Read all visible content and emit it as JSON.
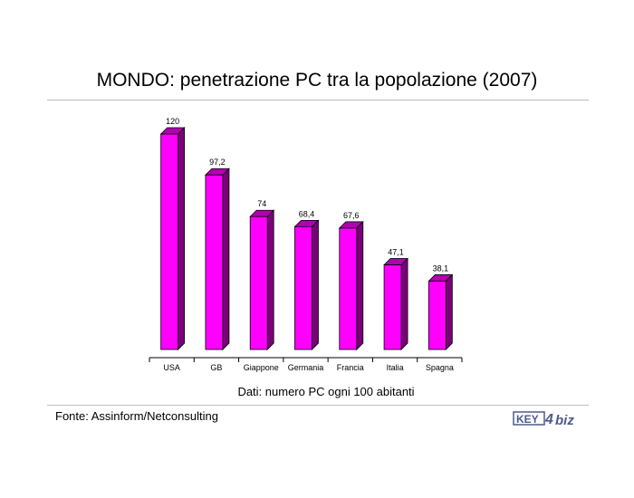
{
  "title": "MONDO: penetrazione PC tra la popolazione (2007)",
  "caption": "Dati: numero PC ogni 100 abitanti",
  "source": "Fonte: Assinform/Netconsulting",
  "logo": {
    "text_left": "KEY",
    "text_right": "biz",
    "mark": "4",
    "color": "#4d5b8a"
  },
  "colors": {
    "bar_front": "#ff00ff",
    "bar_top": "#b000b0",
    "bar_side": "#7a007a",
    "outline": "#000000"
  },
  "chart_data": {
    "type": "bar",
    "title": "MONDO: penetrazione PC tra la popolazione (2007)",
    "xlabel": "Dati: numero PC ogni 100 abitanti",
    "ylabel": "",
    "categories": [
      "USA",
      "GB",
      "Giappone",
      "Germania",
      "Francia",
      "Italia",
      "Spagna"
    ],
    "values": [
      120,
      97.2,
      74,
      68.4,
      67.6,
      47.1,
      38.1
    ],
    "data_labels": [
      "120",
      "97,2",
      "74",
      "68,4",
      "67,6",
      "47,1",
      "38,1"
    ],
    "ylim": [
      0,
      120
    ],
    "grid": false,
    "legend": "none"
  }
}
